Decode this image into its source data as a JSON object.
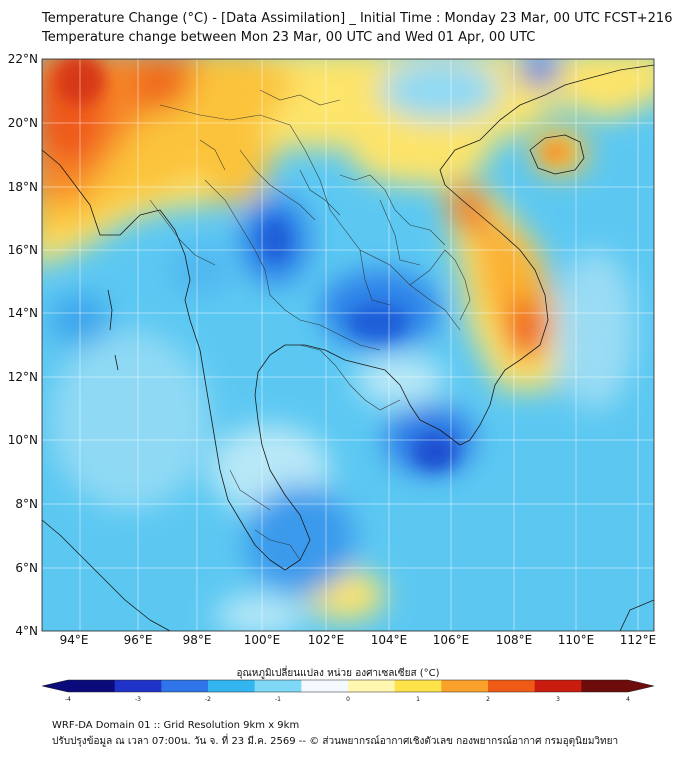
{
  "header": {
    "line1": "Temperature Change (°C) - [Data Assimilation] _ Initial Time : Monday 23 Mar, 00 UTC FCST+216",
    "line2": "Temperature change between Mon 23 Mar, 00 UTC and Wed 01 Apr, 00 UTC"
  },
  "map": {
    "lat_labels": [
      "22°N",
      "20°N",
      "18°N",
      "16°N",
      "14°N",
      "12°N",
      "10°N",
      "8°N",
      "6°N",
      "4°N"
    ],
    "lon_labels": [
      "94°E",
      "96°E",
      "98°E",
      "100°E",
      "102°E",
      "104°E",
      "106°E",
      "108°E",
      "110°E",
      "112°E"
    ]
  },
  "colorbar": {
    "title": "อุณหภูมิเปลี่ยนแปลง หน่วย องศาเซลเซียส (°C)",
    "ticks": [
      "-4",
      "-3",
      "-2",
      "-1",
      "0",
      "1",
      "2",
      "3",
      "4"
    ],
    "colors": [
      "#0a0a7a",
      "#1f33c8",
      "#2f74e8",
      "#33b5f0",
      "#7fd8f5",
      "#f4f8ff",
      "#fff7b0",
      "#fde24a",
      "#f9a12a",
      "#f05a17",
      "#c91b0e",
      "#6e0b0b"
    ]
  },
  "footer": {
    "line1": "WRF-DA Domain 01 :: Grid Resolution 9km x 9km",
    "line2": "ปรับปรุงข้อมูล ณ เวลา 07:00น. วัน จ. ที่ 23 มี.ค. 2569 -- © ส่วนพยากรณ์อากาศเชิงตัวเลข กองพยากรณ์อากาศ กรมอุตุนิยมวิทยา"
  }
}
